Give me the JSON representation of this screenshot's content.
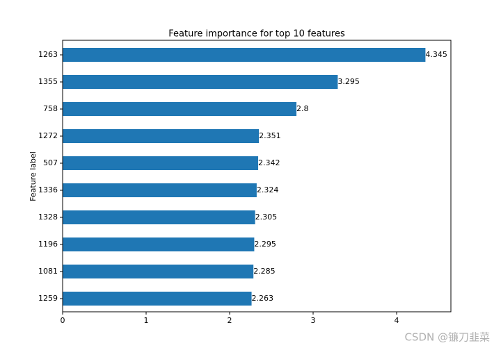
{
  "chart_data": {
    "type": "barh",
    "title": "Feature importance for top 10 features",
    "y_label": "Feature label",
    "categories": [
      "1263",
      "1355",
      "758",
      "1272",
      "507",
      "1336",
      "1328",
      "1196",
      "1081",
      "1259"
    ],
    "values": [
      4.345,
      3.295,
      2.8,
      2.351,
      2.342,
      2.324,
      2.305,
      2.295,
      2.285,
      2.263
    ],
    "color": "#1f77b4",
    "xlim": [
      0,
      4.65
    ],
    "xticks": [
      0,
      1,
      2,
      3,
      4
    ],
    "grid": false
  },
  "watermark": "CSDN @镰刀韭菜"
}
